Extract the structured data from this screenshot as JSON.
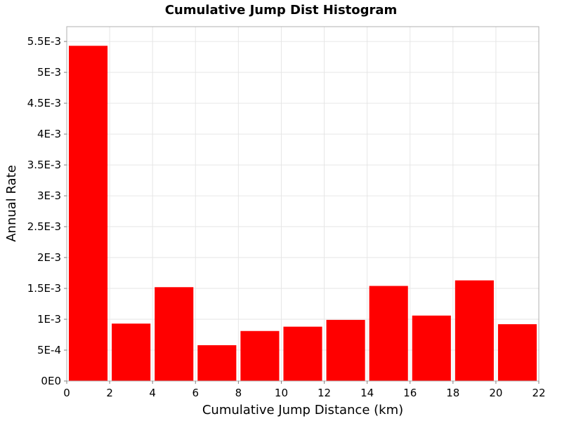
{
  "chart_data": {
    "type": "bar",
    "title": "Cumulative Jump Dist Histogram",
    "xlabel": "Cumulative Jump Distance (km)",
    "ylabel": "Annual Rate",
    "bar_color": "#ff0000",
    "grid": true,
    "xlim": [
      0,
      22
    ],
    "ylim": [
      0,
      0.00574
    ],
    "xticks": [
      0,
      2,
      4,
      6,
      8,
      10,
      12,
      14,
      16,
      18,
      20,
      22
    ],
    "xtick_labels": [
      "0",
      "2",
      "4",
      "6",
      "8",
      "10",
      "12",
      "14",
      "16",
      "18",
      "20",
      "22"
    ],
    "yticks": [
      0,
      0.0005,
      0.001,
      0.0015,
      0.002,
      0.0025,
      0.003,
      0.0035,
      0.004,
      0.0045,
      0.005,
      0.0055
    ],
    "ytick_labels": [
      "0E0",
      "5E-4",
      "1E-3",
      "1.5E-3",
      "2E-3",
      "2.5E-3",
      "3E-3",
      "3.5E-3",
      "4E-3",
      "4.5E-3",
      "5E-3",
      "5.5E-3"
    ],
    "bins": [
      {
        "x": 1,
        "value": 0.00543
      },
      {
        "x": 3,
        "value": 0.00093
      },
      {
        "x": 5,
        "value": 0.00152
      },
      {
        "x": 7,
        "value": 0.00058
      },
      {
        "x": 9,
        "value": 0.00081
      },
      {
        "x": 11,
        "value": 0.00088
      },
      {
        "x": 13,
        "value": 0.00099
      },
      {
        "x": 15,
        "value": 0.00154
      },
      {
        "x": 17,
        "value": 0.00106
      },
      {
        "x": 19,
        "value": 0.00163
      },
      {
        "x": 21,
        "value": 0.00092
      }
    ],
    "bin_width": 2
  }
}
